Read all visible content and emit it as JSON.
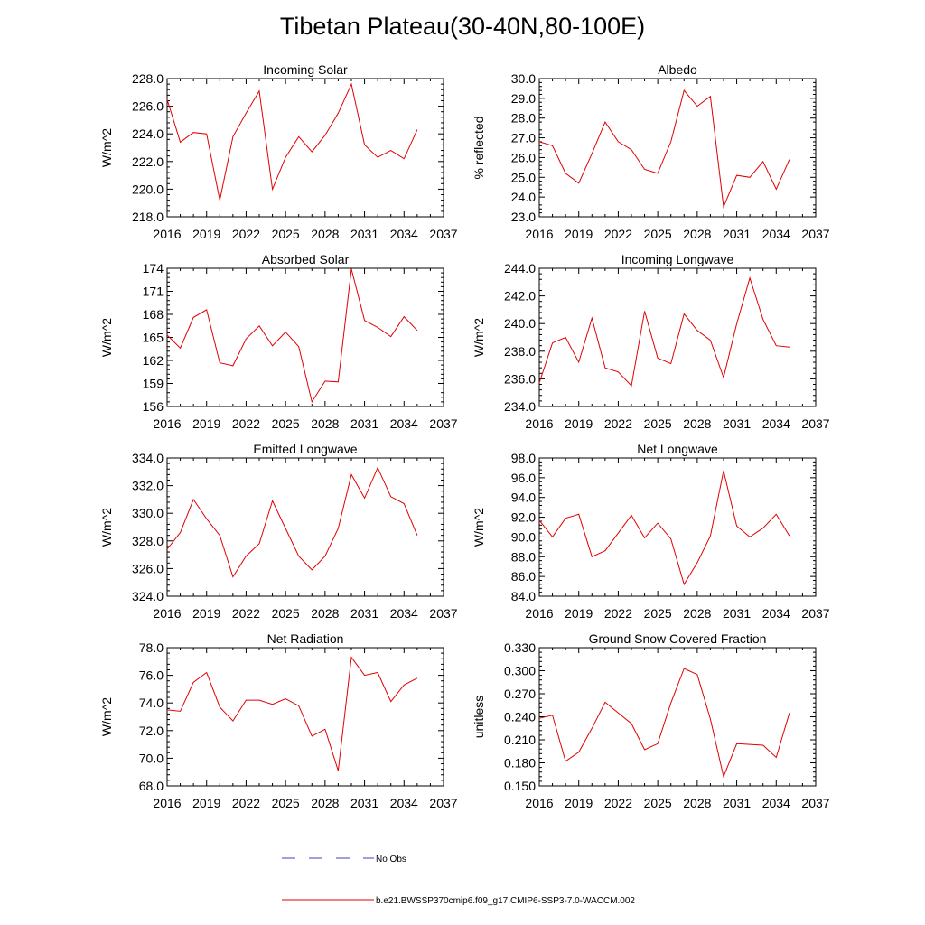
{
  "title": "Tibetan Plateau(30-40N,80-100E)",
  "legend": {
    "obs_label": "No Obs",
    "model_label": "b.e21.BWSSP370cmip6.f09_g17.CMIP6-SSP3-7.0-WACCM.002",
    "obs_color": "#4040c0",
    "model_color": "#e00000"
  },
  "chart_data": [
    {
      "type": "line",
      "title": "Incoming Solar",
      "ylabel": "W/m^2",
      "xlim": [
        2016,
        2037
      ],
      "xticks": [
        2016,
        2019,
        2022,
        2025,
        2028,
        2031,
        2034,
        2037
      ],
      "ylim": [
        218,
        228
      ],
      "yticks": [
        "218.0",
        "220.0",
        "222.0",
        "224.0",
        "226.0",
        "228.0"
      ],
      "x": [
        2016,
        2017,
        2018,
        2019,
        2020,
        2021,
        2022,
        2023,
        2024,
        2025,
        2026,
        2027,
        2028,
        2029,
        2030,
        2031,
        2032,
        2033,
        2034,
        2035
      ],
      "values": [
        226.5,
        223.4,
        224.1,
        224.0,
        219.2,
        223.8,
        225.5,
        227.1,
        220.0,
        222.3,
        223.8,
        222.7,
        223.9,
        225.5,
        227.6,
        223.2,
        222.3,
        222.8,
        222.2,
        224.3
      ]
    },
    {
      "type": "line",
      "title": "Albedo",
      "ylabel": "% reflected",
      "xlim": [
        2016,
        2037
      ],
      "xticks": [
        2016,
        2019,
        2022,
        2025,
        2028,
        2031,
        2034,
        2037
      ],
      "ylim": [
        23,
        30
      ],
      "yticks": [
        "23.0",
        "24.0",
        "25.0",
        "26.0",
        "27.0",
        "28.0",
        "29.0",
        "30.0"
      ],
      "x": [
        2016,
        2017,
        2018,
        2019,
        2020,
        2021,
        2022,
        2023,
        2024,
        2025,
        2026,
        2027,
        2028,
        2029,
        2030,
        2031,
        2032,
        2033,
        2034,
        2035
      ],
      "values": [
        26.8,
        26.6,
        25.2,
        24.7,
        26.2,
        27.8,
        26.8,
        26.4,
        25.4,
        25.2,
        26.8,
        29.4,
        28.6,
        29.1,
        23.5,
        25.1,
        25.0,
        25.8,
        24.4,
        25.9
      ]
    },
    {
      "type": "line",
      "title": "Absorbed Solar",
      "ylabel": "W/m^2",
      "xlim": [
        2016,
        2037
      ],
      "xticks": [
        2016,
        2019,
        2022,
        2025,
        2028,
        2031,
        2034,
        2037
      ],
      "ylim": [
        156,
        174
      ],
      "yticks": [
        "156",
        "159",
        "162",
        "165",
        "168",
        "171",
        "174"
      ],
      "x": [
        2016,
        2017,
        2018,
        2019,
        2020,
        2021,
        2022,
        2023,
        2024,
        2025,
        2026,
        2027,
        2028,
        2029,
        2030,
        2031,
        2032,
        2033,
        2034,
        2035
      ],
      "values": [
        165.3,
        163.6,
        167.6,
        168.6,
        161.7,
        161.3,
        164.8,
        166.5,
        163.9,
        165.7,
        163.8,
        156.6,
        159.3,
        159.2,
        173.9,
        167.2,
        166.3,
        165.1,
        167.7,
        165.9
      ]
    },
    {
      "type": "line",
      "title": "Incoming Longwave",
      "ylabel": "W/m^2",
      "xlim": [
        2016,
        2037
      ],
      "xticks": [
        2016,
        2019,
        2022,
        2025,
        2028,
        2031,
        2034,
        2037
      ],
      "ylim": [
        234,
        244
      ],
      "yticks": [
        "234.0",
        "236.0",
        "238.0",
        "240.0",
        "242.0",
        "244.0"
      ],
      "x": [
        2016,
        2017,
        2018,
        2019,
        2020,
        2021,
        2022,
        2023,
        2024,
        2025,
        2026,
        2027,
        2028,
        2029,
        2030,
        2031,
        2032,
        2033,
        2034,
        2035
      ],
      "values": [
        235.7,
        238.6,
        239.0,
        237.2,
        240.4,
        236.8,
        236.5,
        235.5,
        240.9,
        237.5,
        237.1,
        240.7,
        239.5,
        238.8,
        236.1,
        240.0,
        243.3,
        240.3,
        238.4,
        238.3
      ]
    },
    {
      "type": "line",
      "title": "Emitted Longwave",
      "ylabel": "W/m^2",
      "xlim": [
        2016,
        2037
      ],
      "xticks": [
        2016,
        2019,
        2022,
        2025,
        2028,
        2031,
        2034,
        2037
      ],
      "ylim": [
        324,
        334
      ],
      "yticks": [
        "324.0",
        "326.0",
        "328.0",
        "330.0",
        "332.0",
        "334.0"
      ],
      "x": [
        2016,
        2017,
        2018,
        2019,
        2020,
        2021,
        2022,
        2023,
        2024,
        2025,
        2026,
        2027,
        2028,
        2029,
        2030,
        2031,
        2032,
        2033,
        2034,
        2035
      ],
      "values": [
        327.4,
        328.6,
        331.0,
        329.6,
        328.4,
        325.4,
        326.9,
        327.8,
        330.9,
        328.9,
        326.9,
        325.9,
        326.9,
        328.9,
        332.8,
        331.1,
        333.3,
        331.2,
        330.7,
        328.4
      ]
    },
    {
      "type": "line",
      "title": "Net Longwave",
      "ylabel": "W/m^2",
      "xlim": [
        2016,
        2037
      ],
      "xticks": [
        2016,
        2019,
        2022,
        2025,
        2028,
        2031,
        2034,
        2037
      ],
      "ylim": [
        84,
        98
      ],
      "yticks": [
        "84.0",
        "86.0",
        "88.0",
        "90.0",
        "92.0",
        "94.0",
        "96.0",
        "98.0"
      ],
      "x": [
        2016,
        2017,
        2018,
        2019,
        2020,
        2021,
        2022,
        2023,
        2024,
        2025,
        2026,
        2027,
        2028,
        2029,
        2030,
        2031,
        2032,
        2033,
        2034,
        2035
      ],
      "values": [
        91.7,
        90.0,
        91.9,
        92.3,
        88.0,
        88.6,
        90.4,
        92.2,
        89.9,
        91.4,
        89.8,
        85.2,
        87.4,
        90.1,
        96.7,
        91.1,
        90.0,
        90.9,
        92.3,
        90.1
      ]
    },
    {
      "type": "line",
      "title": "Net Radiation",
      "ylabel": "W/m^2",
      "xlim": [
        2016,
        2037
      ],
      "xticks": [
        2016,
        2019,
        2022,
        2025,
        2028,
        2031,
        2034,
        2037
      ],
      "ylim": [
        68,
        78
      ],
      "yticks": [
        "68.0",
        "70.0",
        "72.0",
        "74.0",
        "76.0",
        "78.0"
      ],
      "x": [
        2016,
        2017,
        2018,
        2019,
        2020,
        2021,
        2022,
        2023,
        2024,
        2025,
        2026,
        2027,
        2028,
        2029,
        2030,
        2031,
        2032,
        2033,
        2034,
        2035
      ],
      "values": [
        73.5,
        73.4,
        75.5,
        76.2,
        73.7,
        72.7,
        74.2,
        74.2,
        73.9,
        74.3,
        73.8,
        71.6,
        72.1,
        69.1,
        77.3,
        76.0,
        76.2,
        74.1,
        75.3,
        75.8
      ]
    },
    {
      "type": "line",
      "title": "Ground Snow Covered Fraction",
      "ylabel": "unitless",
      "xlim": [
        2016,
        2037
      ],
      "xticks": [
        2016,
        2019,
        2022,
        2025,
        2028,
        2031,
        2034,
        2037
      ],
      "ylim": [
        0.15,
        0.33
      ],
      "yticks": [
        "0.150",
        "0.180",
        "0.210",
        "0.240",
        "0.270",
        "0.300",
        "0.330"
      ],
      "x": [
        2016,
        2017,
        2018,
        2019,
        2020,
        2021,
        2022,
        2023,
        2024,
        2025,
        2026,
        2027,
        2028,
        2029,
        2030,
        2031,
        2032,
        2033,
        2034,
        2035
      ],
      "values": [
        0.238,
        0.242,
        0.182,
        0.194,
        0.225,
        0.259,
        0.245,
        0.231,
        0.197,
        0.205,
        0.258,
        0.303,
        0.295,
        0.237,
        0.162,
        0.205,
        0.204,
        0.203,
        0.187,
        0.245
      ]
    }
  ]
}
